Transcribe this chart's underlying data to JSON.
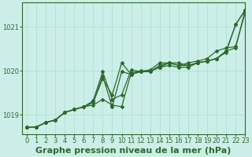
{
  "background_color": "#cceee8",
  "grid_color": "#aaddcc",
  "line_color": "#2d6a2d",
  "title": "Graphe pression niveau de la mer (hPa)",
  "xlim": [
    -0.5,
    23
  ],
  "ylim": [
    1018.55,
    1021.55
  ],
  "yticks": [
    1019,
    1020,
    1021
  ],
  "xticks": [
    0,
    1,
    2,
    3,
    4,
    5,
    6,
    7,
    8,
    9,
    10,
    11,
    12,
    13,
    14,
    15,
    16,
    17,
    18,
    19,
    20,
    21,
    22,
    23
  ],
  "series": [
    [
      1018.72,
      1018.72,
      1018.82,
      1018.88,
      1019.05,
      1019.12,
      1019.18,
      1019.22,
      1019.35,
      1019.22,
      1019.18,
      1019.95,
      1020.0,
      1020.0,
      1020.08,
      1020.18,
      1020.18,
      1020.12,
      1020.18,
      1020.22,
      1020.28,
      1020.42,
      1021.05,
      1021.38
    ],
    [
      1018.72,
      1018.72,
      1018.82,
      1018.88,
      1019.05,
      1019.12,
      1019.18,
      1019.28,
      1019.82,
      1019.45,
      1020.18,
      1019.92,
      1019.98,
      1020.02,
      1020.18,
      1020.18,
      1020.12,
      1020.18,
      1020.22,
      1020.28,
      1020.45,
      1020.52,
      1020.55,
      1021.32
    ],
    [
      1018.72,
      1018.72,
      1018.82,
      1018.88,
      1019.05,
      1019.12,
      1019.18,
      1019.28,
      1019.88,
      1019.18,
      1019.98,
      1019.92,
      1019.98,
      1019.98,
      1020.12,
      1020.18,
      1020.12,
      1020.12,
      1020.18,
      1020.22,
      1020.28,
      1020.45,
      1020.52,
      1021.38
    ],
    [
      1018.72,
      1018.72,
      1018.82,
      1018.88,
      1019.05,
      1019.12,
      1019.18,
      1019.32,
      1019.98,
      1019.35,
      1019.45,
      1020.02,
      1019.98,
      1019.98,
      1020.08,
      1020.12,
      1020.08,
      1020.08,
      1020.18,
      1020.22,
      1020.28,
      1020.45,
      1021.05,
      1021.38
    ]
  ],
  "title_fontsize": 8,
  "tick_fontsize": 6,
  "title_color": "#2d6a2d",
  "tick_color": "#2d6a2d",
  "spine_color": "#2d6a2d",
  "line_width": 0.9,
  "marker": "D",
  "marker_size": 2.0
}
